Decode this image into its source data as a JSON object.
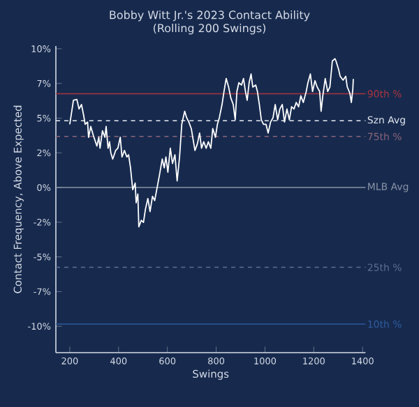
{
  "chart_data": {
    "type": "line",
    "title": "Bobby Witt Jr.'s 2023 Contact Ability",
    "subtitle": "(Rolling 200 Swings)",
    "xlabel": "Swings",
    "ylabel": "Contact Frequency, Above Expected",
    "x": [
      200,
      215,
      229,
      238,
      248,
      257,
      263,
      273,
      277,
      286,
      296,
      311,
      319,
      324,
      334,
      344,
      349,
      357,
      363,
      368,
      376,
      388,
      397,
      407,
      414,
      424,
      434,
      441,
      449,
      458,
      468,
      472,
      479,
      483,
      493,
      502,
      510,
      520,
      529,
      539,
      548,
      558,
      568,
      579,
      587,
      594,
      602,
      612,
      621,
      631,
      640,
      650,
      659,
      671,
      679,
      688,
      698,
      707,
      713,
      723,
      732,
      740,
      749,
      759,
      768,
      778,
      786,
      797,
      805,
      813,
      824,
      832,
      841,
      851,
      860,
      870,
      878,
      885,
      893,
      904,
      912,
      920,
      927,
      935,
      943,
      950,
      962,
      969,
      977,
      985,
      994,
      1004,
      1013,
      1023,
      1033,
      1042,
      1052,
      1061,
      1071,
      1080,
      1090,
      1100,
      1109,
      1119,
      1128,
      1138,
      1147,
      1157,
      1169,
      1176,
      1186,
      1195,
      1205,
      1214,
      1224,
      1230,
      1237,
      1247,
      1257,
      1266,
      1276,
      1287,
      1291,
      1302,
      1308,
      1320,
      1331,
      1337,
      1348,
      1354,
      1360,
      1362
    ],
    "series": [
      {
        "color": "#ffffff",
        "values": [
          4.56,
          6.29,
          6.35,
          5.66,
          5.98,
          5.19,
          4.56,
          4.72,
          3.62,
          4.4,
          3.78,
          2.99,
          3.62,
          2.83,
          4.09,
          3.62,
          4.4,
          2.83,
          3.3,
          2.52,
          2.05,
          2.67,
          2.83,
          3.62,
          2.2,
          2.67,
          2.2,
          2.36,
          1.42,
          -0.16,
          0.32,
          -1.1,
          -0.47,
          -2.83,
          -2.36,
          -2.51,
          -1.57,
          -0.79,
          -1.73,
          -0.63,
          -0.94,
          0.0,
          0.94,
          2.05,
          1.42,
          2.2,
          1.1,
          2.83,
          1.73,
          2.36,
          0.47,
          2.2,
          4.56,
          5.5,
          5.03,
          4.72,
          4.25,
          3.3,
          2.67,
          3.15,
          3.93,
          2.83,
          3.3,
          2.83,
          3.3,
          2.83,
          4.25,
          3.62,
          4.56,
          5.03,
          5.98,
          6.92,
          7.86,
          7.24,
          6.45,
          5.98,
          4.88,
          6.92,
          7.55,
          7.39,
          7.86,
          6.92,
          6.29,
          7.55,
          8.18,
          7.24,
          7.39,
          6.92,
          5.98,
          4.88,
          4.56,
          4.56,
          3.93,
          4.72,
          5.03,
          5.98,
          4.88,
          5.66,
          5.98,
          4.72,
          5.66,
          4.88,
          5.82,
          5.66,
          6.13,
          5.82,
          6.61,
          6.13,
          6.92,
          7.55,
          8.18,
          6.92,
          7.7,
          7.24,
          6.92,
          5.5,
          6.61,
          7.86,
          6.92,
          7.24,
          9.12,
          9.28,
          9.12,
          8.49,
          8.02,
          7.74,
          8.02,
          7.26,
          6.79,
          6.13,
          7.08,
          7.83
        ]
      }
    ],
    "xlim": [
      143,
      1412
    ],
    "ylim": [
      -11.9,
      10.2
    ],
    "xticks": [
      200,
      400,
      600,
      800,
      1000,
      1200,
      1400
    ],
    "yticks": [
      {
        "value": -10,
        "label": "-10%"
      },
      {
        "value": -7.5,
        "label": "-7%"
      },
      {
        "value": -5,
        "label": "-5%"
      },
      {
        "value": -2.5,
        "label": "-2%"
      },
      {
        "value": 0,
        "label": "0%"
      },
      {
        "value": 2.5,
        "label": "2%"
      },
      {
        "value": 5,
        "label": "5%"
      },
      {
        "value": 7.5,
        "label": "7%"
      },
      {
        "value": 10,
        "label": "10%"
      }
    ],
    "ref_lines": [
      {
        "axis": "y",
        "value": 6.76,
        "label": "90th %",
        "color": "#a8343f",
        "line_style": "solid"
      },
      {
        "axis": "y",
        "value": 4.81,
        "label": "Szn Avg",
        "color": "#e8ecf2",
        "line_style": "dashed"
      },
      {
        "axis": "y",
        "value": 3.68,
        "label": "75th %",
        "color": "#8c6479",
        "line_style": "dashed"
      },
      {
        "axis": "y",
        "value": 0,
        "label": "MLB Avg",
        "color": "#8a93a6",
        "line_style": "solid"
      },
      {
        "axis": "y",
        "value": -5.75,
        "label": "25th %",
        "color": "#5b6f95",
        "line_style": "dashed"
      },
      {
        "axis": "y",
        "value": -9.84,
        "label": "10th %",
        "color": "#2d5a9c",
        "line_style": "solid"
      }
    ],
    "grid": false,
    "marker": "none",
    "line_style": "solid"
  }
}
